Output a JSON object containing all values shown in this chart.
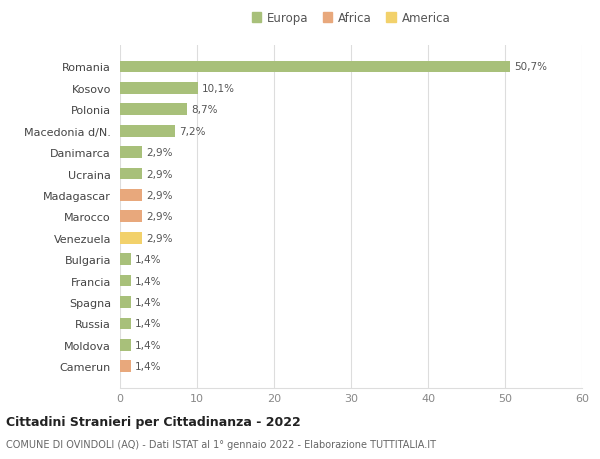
{
  "categories": [
    "Camerun",
    "Moldova",
    "Russia",
    "Spagna",
    "Francia",
    "Bulgaria",
    "Venezuela",
    "Marocco",
    "Madagascar",
    "Ucraina",
    "Danimarca",
    "Macedonia d/N.",
    "Polonia",
    "Kosovo",
    "Romania"
  ],
  "values": [
    1.4,
    1.4,
    1.4,
    1.4,
    1.4,
    1.4,
    2.9,
    2.9,
    2.9,
    2.9,
    2.9,
    7.2,
    8.7,
    10.1,
    50.7
  ],
  "labels": [
    "1,4%",
    "1,4%",
    "1,4%",
    "1,4%",
    "1,4%",
    "1,4%",
    "2,9%",
    "2,9%",
    "2,9%",
    "2,9%",
    "2,9%",
    "7,2%",
    "8,7%",
    "10,1%",
    "50,7%"
  ],
  "colors": [
    "#e8a87c",
    "#a8c07a",
    "#a8c07a",
    "#a8c07a",
    "#a8c07a",
    "#a8c07a",
    "#f2d16b",
    "#e8a87c",
    "#e8a87c",
    "#a8c07a",
    "#a8c07a",
    "#a8c07a",
    "#a8c07a",
    "#a8c07a",
    "#a8c07a"
  ],
  "legend_labels": [
    "Europa",
    "Africa",
    "America"
  ],
  "legend_colors": [
    "#a8c07a",
    "#e8a87c",
    "#f2d16b"
  ],
  "title1": "Cittadini Stranieri per Cittadinanza - 2022",
  "title2": "COMUNE DI OVINDOLI (AQ) - Dati ISTAT al 1° gennaio 2022 - Elaborazione TUTTITALIA.IT",
  "xlim": [
    0,
    60
  ],
  "xticks": [
    0,
    10,
    20,
    30,
    40,
    50,
    60
  ],
  "bg_color": "#ffffff",
  "plot_bg_color": "#ffffff",
  "grid_color": "#dddddd",
  "bar_label_fontsize": 7.5,
  "ytick_fontsize": 8,
  "xtick_fontsize": 8
}
